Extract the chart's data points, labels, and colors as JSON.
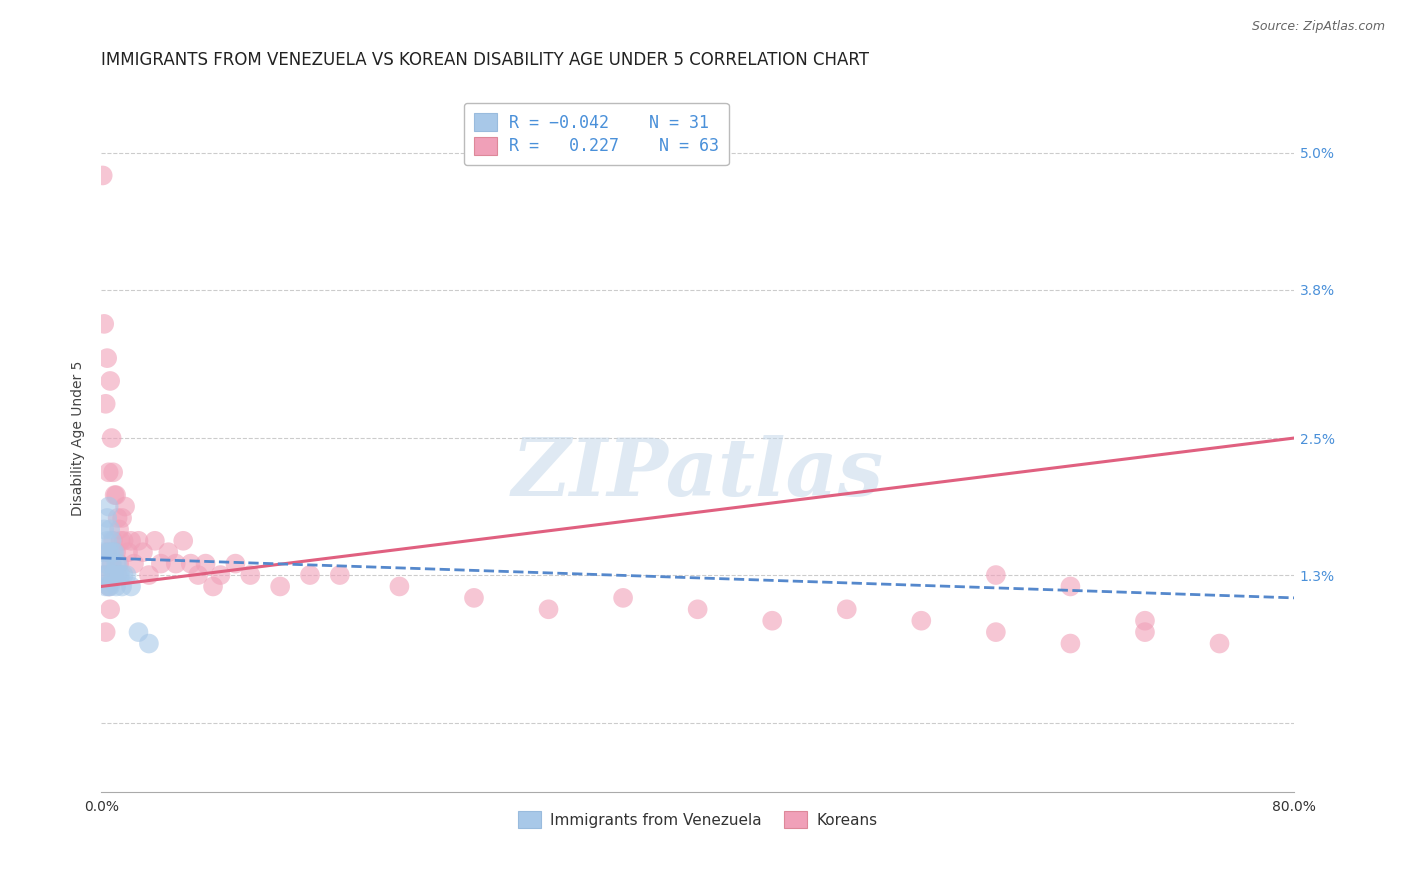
{
  "title": "IMMIGRANTS FROM VENEZUELA VS KOREAN DISABILITY AGE UNDER 5 CORRELATION CHART",
  "source": "Source: ZipAtlas.com",
  "ylabel": "Disability Age Under 5",
  "xlim": [
    0.0,
    0.8
  ],
  "ylim": [
    -0.006,
    0.056
  ],
  "yticks": [
    0.0,
    0.013,
    0.025,
    0.038,
    0.05
  ],
  "ytick_labels": [
    "",
    "1.3%",
    "2.5%",
    "3.8%",
    "5.0%"
  ],
  "xticks": [
    0.0,
    0.2,
    0.4,
    0.6,
    0.8
  ],
  "xtick_labels": [
    "0.0%",
    "",
    "",
    "",
    "80.0%"
  ],
  "watermark": "ZIPatlas",
  "color_venezuela": "#a8c8e8",
  "color_korean": "#f0a0b8",
  "color_line_venezuela": "#5588cc",
  "color_line_korean": "#e06080",
  "venezuela_x": [
    0.001,
    0.002,
    0.002,
    0.003,
    0.003,
    0.004,
    0.004,
    0.004,
    0.005,
    0.005,
    0.005,
    0.006,
    0.006,
    0.006,
    0.007,
    0.007,
    0.008,
    0.008,
    0.009,
    0.009,
    0.01,
    0.01,
    0.011,
    0.012,
    0.013,
    0.014,
    0.015,
    0.017,
    0.02,
    0.025,
    0.032
  ],
  "venezuela_y": [
    0.015,
    0.017,
    0.013,
    0.014,
    0.012,
    0.018,
    0.016,
    0.013,
    0.019,
    0.015,
    0.012,
    0.017,
    0.015,
    0.012,
    0.016,
    0.014,
    0.015,
    0.013,
    0.015,
    0.013,
    0.014,
    0.012,
    0.014,
    0.013,
    0.013,
    0.012,
    0.013,
    0.013,
    0.012,
    0.008,
    0.007
  ],
  "korean_x": [
    0.001,
    0.002,
    0.002,
    0.003,
    0.003,
    0.004,
    0.004,
    0.005,
    0.005,
    0.006,
    0.006,
    0.007,
    0.007,
    0.008,
    0.008,
    0.009,
    0.009,
    0.01,
    0.01,
    0.011,
    0.011,
    0.012,
    0.012,
    0.013,
    0.014,
    0.015,
    0.016,
    0.018,
    0.02,
    0.022,
    0.025,
    0.028,
    0.032,
    0.036,
    0.04,
    0.045,
    0.05,
    0.055,
    0.06,
    0.065,
    0.07,
    0.075,
    0.08,
    0.09,
    0.1,
    0.12,
    0.14,
    0.16,
    0.2,
    0.25,
    0.3,
    0.35,
    0.4,
    0.45,
    0.5,
    0.55,
    0.6,
    0.65,
    0.7,
    0.75,
    0.6,
    0.65,
    0.7
  ],
  "korean_y": [
    0.048,
    0.035,
    0.013,
    0.028,
    0.008,
    0.032,
    0.015,
    0.022,
    0.012,
    0.03,
    0.01,
    0.025,
    0.014,
    0.022,
    0.016,
    0.02,
    0.013,
    0.02,
    0.015,
    0.018,
    0.013,
    0.017,
    0.014,
    0.016,
    0.018,
    0.016,
    0.019,
    0.015,
    0.016,
    0.014,
    0.016,
    0.015,
    0.013,
    0.016,
    0.014,
    0.015,
    0.014,
    0.016,
    0.014,
    0.013,
    0.014,
    0.012,
    0.013,
    0.014,
    0.013,
    0.012,
    0.013,
    0.013,
    0.012,
    0.011,
    0.01,
    0.011,
    0.01,
    0.009,
    0.01,
    0.009,
    0.008,
    0.007,
    0.008,
    0.007,
    0.013,
    0.012,
    0.009
  ],
  "grid_color": "#cccccc",
  "background_color": "#ffffff",
  "title_fontsize": 12,
  "axis_label_fontsize": 10,
  "tick_fontsize": 10,
  "right_tick_color": "#4a90d9",
  "line_korean_x0": 0.0,
  "line_korean_y0": 0.012,
  "line_korean_x1": 0.8,
  "line_korean_y1": 0.025,
  "line_venezuela_x0": 0.0,
  "line_venezuela_y0": 0.0145,
  "line_venezuela_x1": 0.8,
  "line_venezuela_y1": 0.011
}
